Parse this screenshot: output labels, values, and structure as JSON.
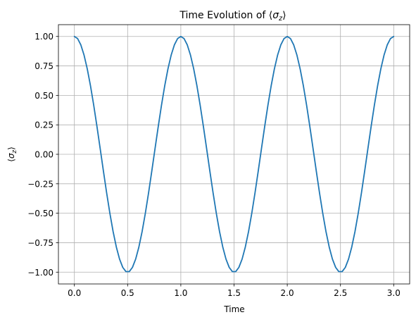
{
  "chart_data": {
    "type": "line",
    "title": "Time Evolution of ⟨σ_z⟩",
    "title_prefix": "Time Evolution of ⟨",
    "title_var": "σ",
    "title_sub": "z",
    "title_suffix": "⟩",
    "xlabel": "Time",
    "ylabel": "⟨σ_z⟩",
    "ylabel_open": "⟨",
    "ylabel_var": "σ",
    "ylabel_sub": "z",
    "ylabel_close": "⟩",
    "xlim": [
      -0.15,
      3.15
    ],
    "ylim": [
      -1.1,
      1.1
    ],
    "xticks": [
      0.0,
      0.5,
      1.0,
      1.5,
      2.0,
      2.5,
      3.0
    ],
    "xtick_labels": [
      "0.0",
      "0.5",
      "1.0",
      "1.5",
      "2.0",
      "2.5",
      "3.0"
    ],
    "yticks": [
      1.0,
      0.75,
      0.5,
      0.25,
      0.0,
      -0.25,
      -0.5,
      -0.75,
      -1.0
    ],
    "ytick_labels": [
      "1.00",
      "0.75",
      "0.50",
      "0.25",
      "0.00",
      "−0.25",
      "−0.50",
      "−0.75",
      "−1.00"
    ],
    "grid": true,
    "series": [
      {
        "color": "#1f77b4",
        "function": "cos(2*pi*t)",
        "x_start": 0.0,
        "x_end": 3.0,
        "n_points": 100
      }
    ]
  }
}
